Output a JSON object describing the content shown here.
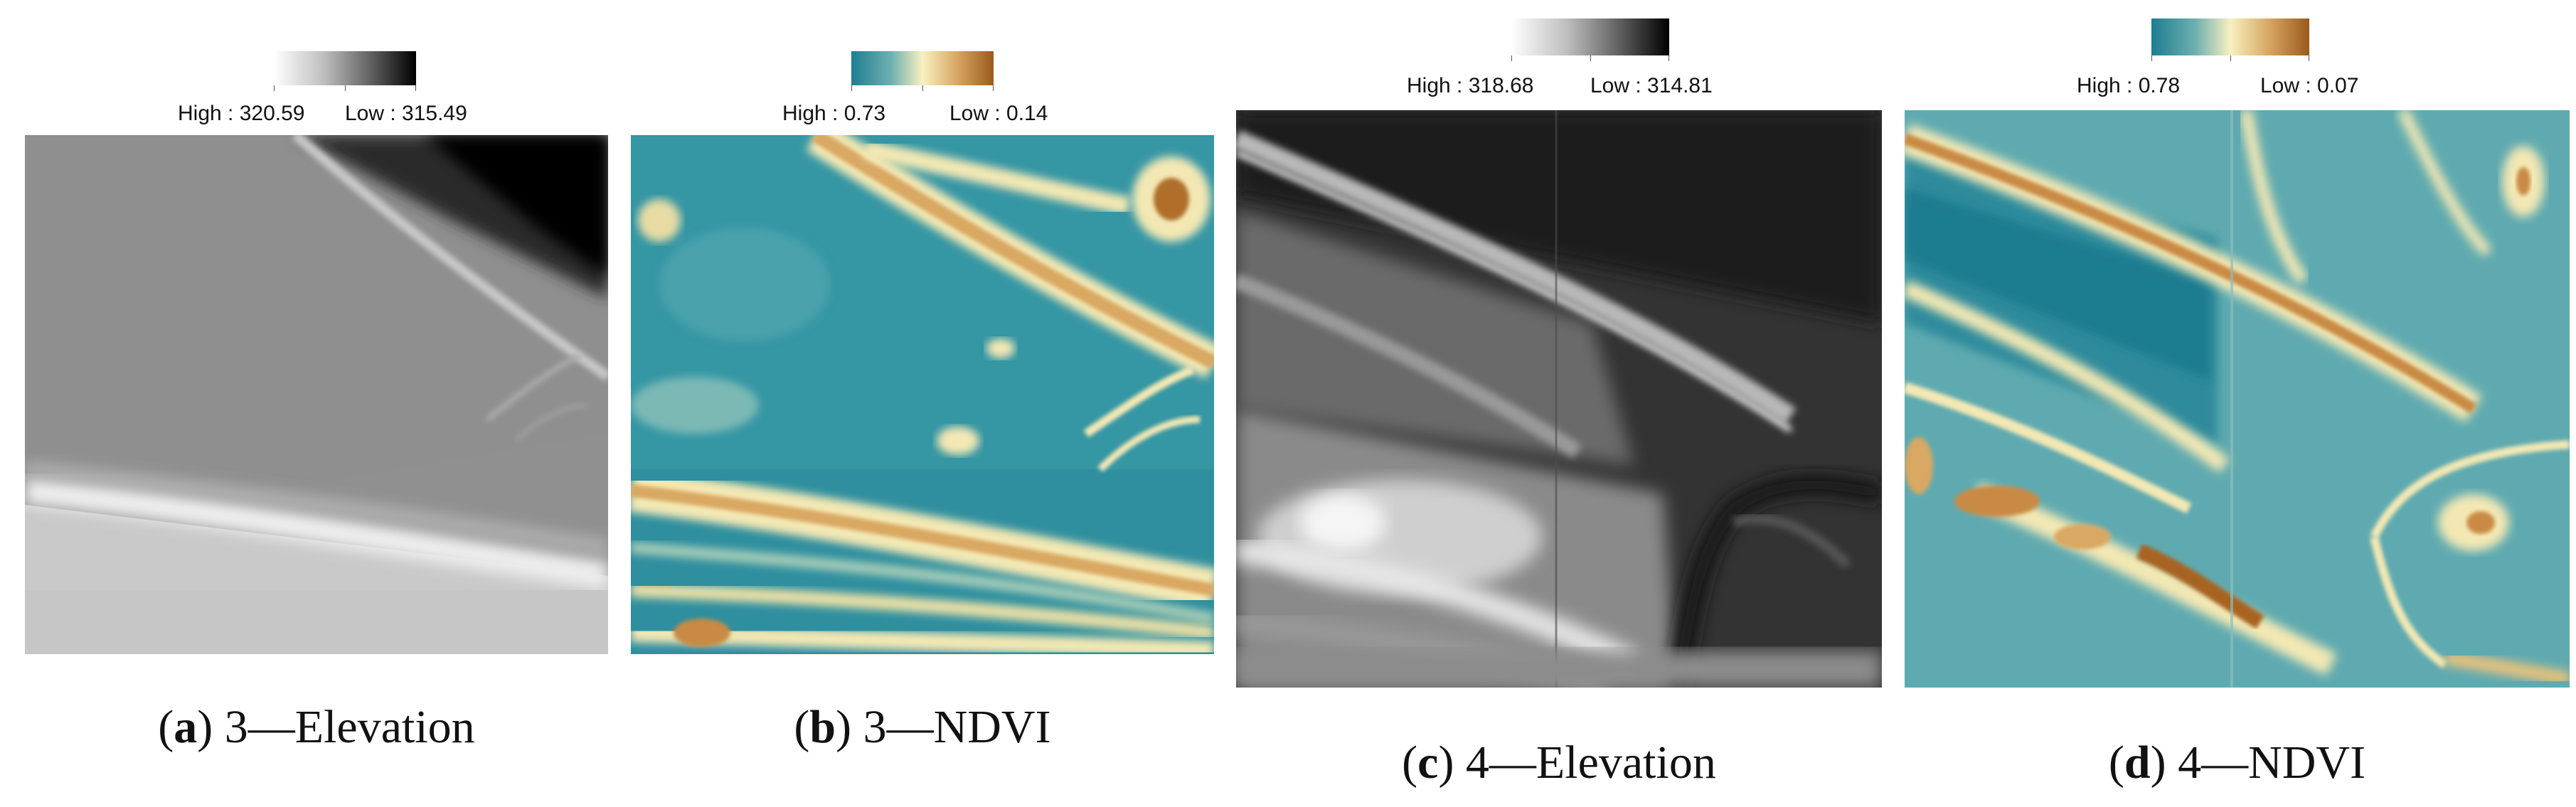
{
  "figure": {
    "panels": [
      {
        "id": "a",
        "letter": "a",
        "caption": "3—Elevation",
        "legend": {
          "high": "High : 320.59",
          "low": "Low : 315.49",
          "colormap": "grayscale"
        }
      },
      {
        "id": "b",
        "letter": "b",
        "caption": "3—NDVI",
        "legend": {
          "high": "High : 0.73",
          "low": "Low : 0.14",
          "colormap": "teal-cream-brown"
        }
      },
      {
        "id": "c",
        "letter": "c",
        "caption": "4—Elevation",
        "legend": {
          "high": "High : 318.68",
          "low": "Low : 314.81",
          "colormap": "grayscale"
        }
      },
      {
        "id": "d",
        "letter": "d",
        "caption": "4—NDVI",
        "legend": {
          "high": "High : 0.78",
          "low": "Low : 0.07",
          "colormap": "teal-cream-brown"
        }
      }
    ],
    "colors": {
      "ndvi_high": "#1d7d92",
      "ndvi_mid": "#f7f1c0",
      "ndvi_low": "#9a5a1c"
    }
  }
}
